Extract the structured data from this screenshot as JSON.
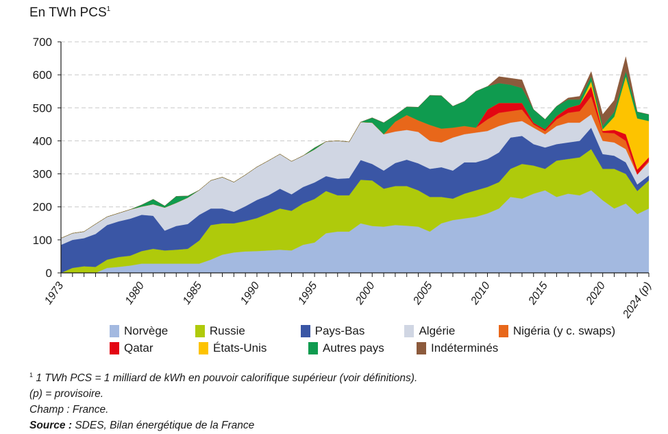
{
  "chart_data": {
    "type": "area",
    "stacked": true,
    "title": "",
    "ylabel": "En TWh PCS",
    "ylabel_sup": "1",
    "xlabel": "",
    "ylim": [
      0,
      700
    ],
    "yticks": [
      0,
      100,
      200,
      300,
      400,
      500,
      600,
      700
    ],
    "xtick_labels": [
      {
        "year": 1973,
        "label": "1973"
      },
      {
        "year": 1980,
        "label": "1980"
      },
      {
        "year": 1985,
        "label": "1985"
      },
      {
        "year": 1990,
        "label": "1990"
      },
      {
        "year": 1995,
        "label": "1995"
      },
      {
        "year": 2000,
        "label": "2000"
      },
      {
        "year": 2005,
        "label": "2005"
      },
      {
        "year": 2010,
        "label": "2010"
      },
      {
        "year": 2015,
        "label": "2015"
      },
      {
        "year": 2020,
        "label": "2020"
      },
      {
        "year": 2024,
        "label": "2024 (p)"
      }
    ],
    "grid": "horizontal dashed",
    "legend_position": "bottom",
    "x": [
      1973,
      1974,
      1975,
      1976,
      1977,
      1978,
      1979,
      1980,
      1981,
      1982,
      1983,
      1984,
      1985,
      1986,
      1987,
      1988,
      1989,
      1990,
      1991,
      1992,
      1993,
      1994,
      1995,
      1996,
      1997,
      1998,
      1999,
      2000,
      2001,
      2002,
      2003,
      2004,
      2005,
      2006,
      2007,
      2008,
      2009,
      2010,
      2011,
      2012,
      2013,
      2014,
      2015,
      2016,
      2017,
      2018,
      2019,
      2020,
      2021,
      2022,
      2023,
      2024
    ],
    "series": [
      {
        "name": "Norvège",
        "color": "#a3b9e0",
        "values": [
          0,
          0,
          0,
          0,
          15,
          18,
          22,
          28,
          28,
          28,
          28,
          28,
          28,
          40,
          55,
          62,
          65,
          66,
          68,
          70,
          68,
          85,
          92,
          120,
          125,
          125,
          150,
          142,
          140,
          145,
          143,
          140,
          125,
          150,
          160,
          165,
          170,
          180,
          195,
          230,
          225,
          240,
          250,
          230,
          240,
          235,
          250,
          220,
          195,
          210,
          178,
          195
        ]
      },
      {
        "name": "Russie",
        "color": "#afca0b",
        "values": [
          0,
          15,
          20,
          18,
          25,
          30,
          30,
          38,
          45,
          40,
          42,
          45,
          70,
          105,
          95,
          88,
          92,
          100,
          112,
          125,
          120,
          125,
          132,
          128,
          110,
          110,
          132,
          138,
          115,
          118,
          120,
          110,
          105,
          80,
          65,
          75,
          80,
          80,
          80,
          85,
          105,
          85,
          65,
          110,
          105,
          115,
          125,
          95,
          120,
          90,
          70,
          85
        ]
      },
      {
        "name": "Pays-Bas",
        "color": "#3a56a5",
        "values": [
          85,
          85,
          85,
          100,
          105,
          108,
          112,
          110,
          100,
          60,
          72,
          75,
          78,
          50,
          45,
          35,
          45,
          55,
          55,
          60,
          50,
          50,
          50,
          45,
          50,
          52,
          60,
          50,
          55,
          70,
          80,
          82,
          85,
          90,
          85,
          95,
          85,
          85,
          90,
          95,
          85,
          65,
          65,
          50,
          50,
          50,
          65,
          45,
          40,
          35,
          20,
          15
        ]
      },
      {
        "name": "Algérie",
        "color": "#d0d6e3",
        "values": [
          20,
          20,
          20,
          30,
          25,
          25,
          28,
          25,
          35,
          70,
          70,
          80,
          75,
          85,
          95,
          90,
          95,
          100,
          105,
          105,
          100,
          95,
          100,
          105,
          115,
          110,
          115,
          125,
          110,
          95,
          90,
          95,
          85,
          75,
          100,
          85,
          90,
          85,
          80,
          45,
          45,
          50,
          40,
          55,
          60,
          55,
          40,
          40,
          40,
          40,
          30,
          40
        ]
      },
      {
        "name": "Nigéria (y c. swaps)",
        "color": "#e8671a",
        "values": [
          0,
          0,
          0,
          0,
          0,
          0,
          0,
          0,
          0,
          0,
          0,
          0,
          0,
          0,
          0,
          0,
          0,
          0,
          0,
          0,
          0,
          0,
          0,
          0,
          0,
          0,
          0,
          0,
          0,
          30,
          45,
          35,
          48,
          42,
          30,
          25,
          15,
          35,
          40,
          35,
          35,
          10,
          10,
          20,
          30,
          35,
          55,
          25,
          28,
          25,
          0,
          5
        ]
      },
      {
        "name": "Qatar",
        "color": "#e30613",
        "values": [
          0,
          0,
          0,
          0,
          0,
          0,
          0,
          0,
          0,
          0,
          0,
          0,
          0,
          0,
          0,
          0,
          0,
          0,
          0,
          0,
          0,
          0,
          0,
          0,
          0,
          0,
          0,
          0,
          0,
          0,
          0,
          0,
          0,
          0,
          0,
          0,
          0,
          30,
          30,
          25,
          20,
          5,
          5,
          10,
          15,
          20,
          30,
          5,
          10,
          20,
          15,
          10
        ]
      },
      {
        "name": "États-Unis",
        "color": "#fdc300",
        "values": [
          0,
          0,
          0,
          0,
          0,
          0,
          0,
          0,
          0,
          0,
          0,
          0,
          0,
          0,
          0,
          0,
          0,
          0,
          0,
          0,
          0,
          0,
          0,
          0,
          0,
          0,
          0,
          0,
          0,
          0,
          0,
          0,
          0,
          0,
          0,
          0,
          0,
          0,
          0,
          0,
          0,
          0,
          0,
          0,
          0,
          0,
          15,
          5,
          40,
          175,
          155,
          110
        ]
      },
      {
        "name": "Autres pays",
        "color": "#0f9b4f",
        "values": [
          0,
          0,
          0,
          0,
          0,
          0,
          0,
          5,
          15,
          5,
          20,
          5,
          0,
          0,
          0,
          0,
          0,
          0,
          0,
          0,
          0,
          0,
          5,
          0,
          0,
          0,
          0,
          15,
          35,
          20,
          25,
          40,
          90,
          100,
          65,
          75,
          110,
          70,
          60,
          55,
          45,
          40,
          30,
          30,
          25,
          15,
          15,
          10,
          15,
          15,
          20,
          20
        ]
      },
      {
        "name": "Indéterminés",
        "color": "#8c5a3c",
        "values": [
          0,
          0,
          0,
          0,
          0,
          0,
          0,
          0,
          0,
          0,
          0,
          0,
          0,
          0,
          0,
          0,
          0,
          0,
          0,
          0,
          0,
          0,
          0,
          0,
          0,
          0,
          0,
          0,
          0,
          0,
          0,
          0,
          0,
          0,
          0,
          0,
          0,
          0,
          20,
          20,
          25,
          0,
          0,
          0,
          5,
          10,
          15,
          35,
          35,
          45,
          0,
          0
        ]
      }
    ]
  },
  "legend_rows": [
    [
      0,
      1,
      2,
      3,
      4
    ],
    [
      5,
      6,
      7,
      8
    ]
  ],
  "notes": {
    "footnote_mark": "1",
    "footnote": " 1 TWh PCS = 1 milliard de kWh en pouvoir calorifique supérieur (voir définitions).",
    "provisional": "(p) = provisoire.",
    "scope": "Champ : France.",
    "source_label": "Source :",
    "source_text": " SDES, Bilan énergétique de la France"
  }
}
